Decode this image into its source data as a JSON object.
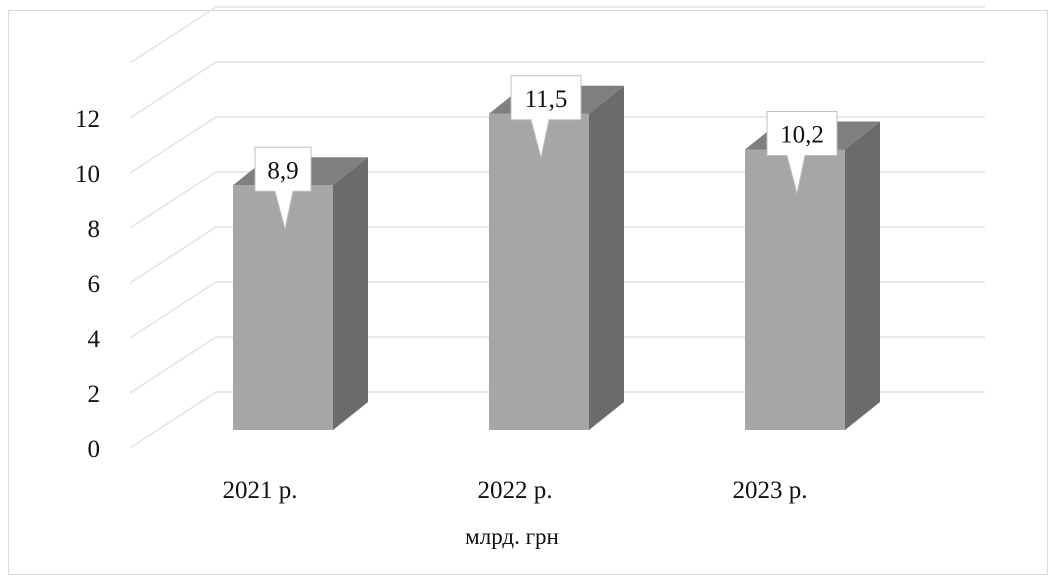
{
  "chart_data": {
    "type": "bar",
    "style": "3d-column",
    "categories": [
      "2021 р.",
      "2022 р.",
      "2023 р."
    ],
    "values": [
      8.9,
      11.5,
      10.2
    ],
    "data_labels": [
      "8,9",
      "11,5",
      "10,2"
    ],
    "xlabel": "млрд. грн",
    "ylabel": "",
    "ylim": [
      0,
      12
    ],
    "yticks": [
      "0",
      "2",
      "4",
      "6",
      "8",
      "10",
      "12"
    ],
    "grid": true,
    "legend": "none",
    "colors": {
      "bar_front": "#a6a6a6",
      "bar_side": "#6b6b6b",
      "bar_top": "#7f7f7f",
      "gridline": "#e3e3e3",
      "label_box": "#ffffff"
    }
  }
}
